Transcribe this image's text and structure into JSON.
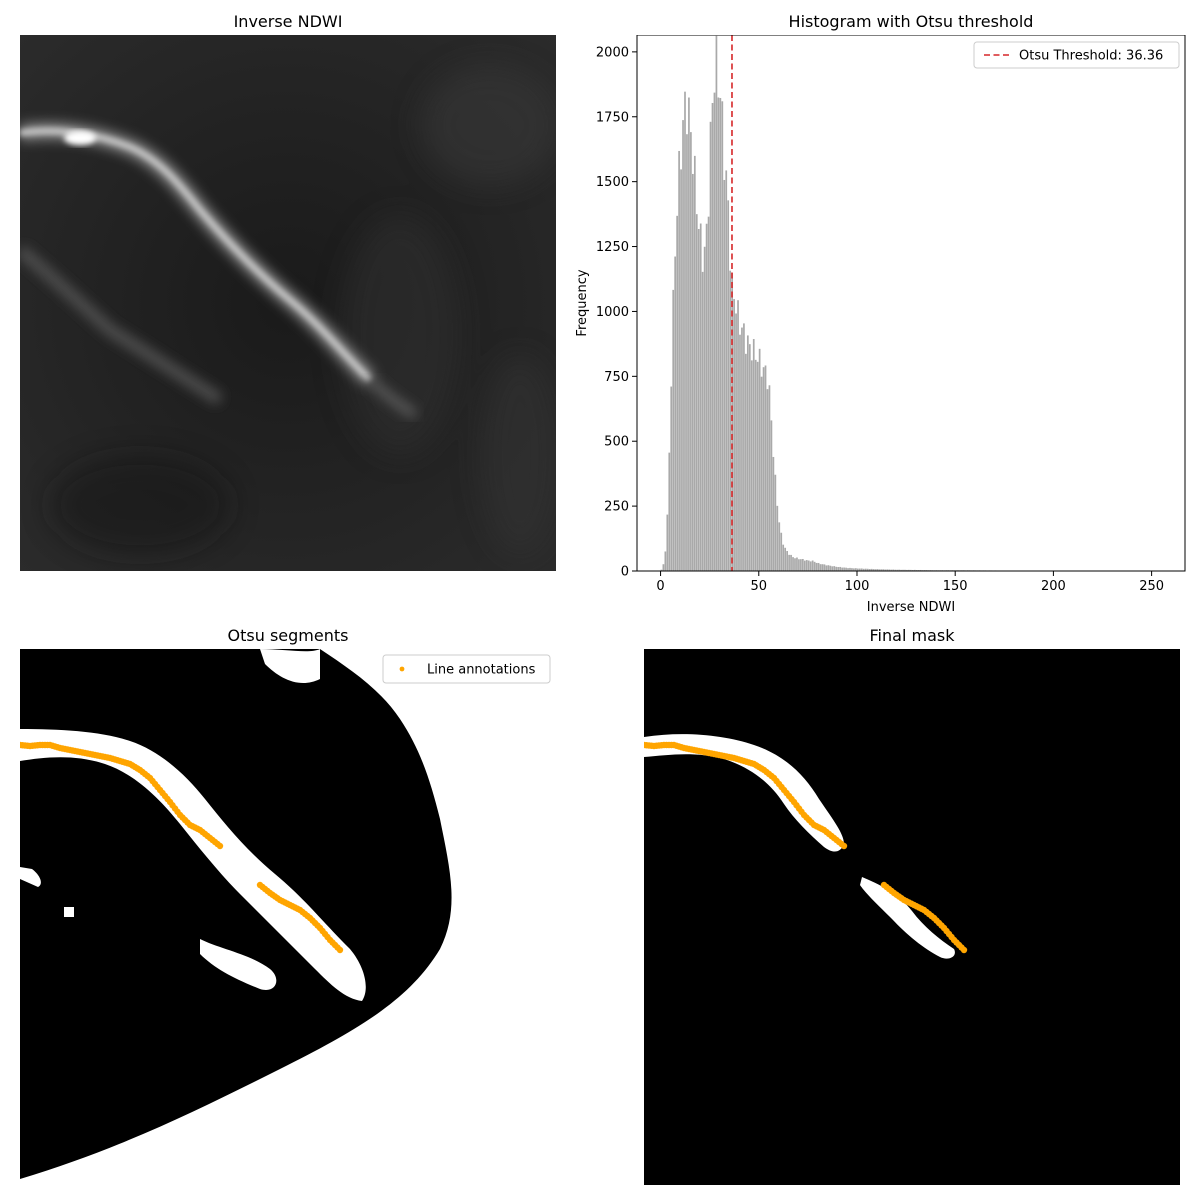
{
  "panels": {
    "ndwi": {
      "title": "Inverse NDWI"
    },
    "hist": {
      "title": "Histogram with Otsu threshold"
    },
    "otsu": {
      "title": "Otsu segments",
      "legend_label": "Line annotations"
    },
    "final": {
      "title": "Final mask"
    }
  },
  "colors": {
    "annotation": "#FFA500",
    "threshold": "#d62728",
    "bars": "#a9a9a9"
  },
  "chart_data": [
    {
      "type": "histogram",
      "title": "Histogram with Otsu threshold",
      "xlabel": "Inverse NDWI",
      "ylabel": "Frequency",
      "xlim": [
        -12,
        267
      ],
      "ylim": [
        0,
        2065
      ],
      "xticks": [
        0,
        50,
        100,
        150,
        200,
        250
      ],
      "yticks": [
        0,
        250,
        500,
        750,
        1000,
        1250,
        1500,
        1750,
        2000
      ],
      "threshold": {
        "value": 36.36,
        "label": "Otsu Threshold: 36.36"
      },
      "legend_position": "top-right",
      "grid": false,
      "profile": [
        [
          0,
          0
        ],
        [
          1,
          10
        ],
        [
          2,
          40
        ],
        [
          3,
          120
        ],
        [
          4,
          300
        ],
        [
          5,
          600
        ],
        [
          6,
          900
        ],
        [
          7,
          1150
        ],
        [
          8,
          1330
        ],
        [
          9,
          1480
        ],
        [
          10,
          1580
        ],
        [
          11,
          1680
        ],
        [
          12,
          1760
        ],
        [
          13,
          1800
        ],
        [
          14,
          1780
        ],
        [
          15,
          1720
        ],
        [
          16,
          1650
        ],
        [
          17,
          1560
        ],
        [
          18,
          1460
        ],
        [
          19,
          1380
        ],
        [
          20,
          1300
        ],
        [
          21,
          1240
        ],
        [
          22,
          1200
        ],
        [
          23,
          1250
        ],
        [
          24,
          1350
        ],
        [
          25,
          1550
        ],
        [
          26,
          1750
        ],
        [
          27,
          1880
        ],
        [
          28,
          1960
        ],
        [
          29,
          1930
        ],
        [
          30,
          1870
        ],
        [
          31,
          1800
        ],
        [
          32,
          1650
        ],
        [
          33,
          1550
        ],
        [
          34,
          1450
        ],
        [
          35,
          1350
        ],
        [
          36,
          1100
        ],
        [
          37,
          1080
        ],
        [
          38,
          1050
        ],
        [
          39,
          1000
        ],
        [
          40,
          970
        ],
        [
          41,
          940
        ],
        [
          42,
          930
        ],
        [
          43,
          900
        ],
        [
          44,
          880
        ],
        [
          45,
          870
        ],
        [
          46,
          860
        ],
        [
          47,
          850
        ],
        [
          48,
          840
        ],
        [
          49,
          830
        ],
        [
          50,
          820
        ],
        [
          51,
          800
        ],
        [
          52,
          780
        ],
        [
          53,
          770
        ],
        [
          54,
          760
        ],
        [
          55,
          730
        ],
        [
          56,
          640
        ],
        [
          57,
          520
        ],
        [
          58,
          400
        ],
        [
          59,
          300
        ],
        [
          60,
          220
        ],
        [
          61,
          160
        ],
        [
          62,
          120
        ],
        [
          63,
          95
        ],
        [
          64,
          80
        ],
        [
          65,
          70
        ],
        [
          66,
          62
        ],
        [
          67,
          56
        ],
        [
          68,
          52
        ],
        [
          70,
          48
        ],
        [
          72,
          45
        ],
        [
          75,
          40
        ],
        [
          78,
          38
        ],
        [
          80,
          30
        ],
        [
          85,
          22
        ],
        [
          90,
          16
        ],
        [
          95,
          12
        ],
        [
          100,
          10
        ],
        [
          110,
          7
        ],
        [
          120,
          5
        ],
        [
          130,
          4
        ],
        [
          140,
          3
        ],
        [
          150,
          3
        ],
        [
          170,
          2
        ],
        [
          190,
          1
        ],
        [
          210,
          1
        ],
        [
          230,
          1
        ],
        [
          255,
          0
        ]
      ]
    },
    {
      "type": "scatter",
      "title": "Otsu segments",
      "legend": [
        "Line annotations"
      ],
      "legend_position": "top-right",
      "series": [
        {
          "name": "Line annotations",
          "x": [
            0,
            10,
            20,
            30,
            40,
            50,
            60,
            70,
            80,
            90,
            100,
            110,
            120,
            130,
            140,
            150,
            160,
            170,
            180,
            190,
            200,
            240,
            250,
            260,
            270,
            280,
            290,
            300,
            310,
            320
          ],
          "y": [
            745,
            746,
            745,
            745,
            748,
            750,
            752,
            754,
            756,
            758,
            761,
            764,
            770,
            778,
            790,
            802,
            815,
            825,
            830,
            838,
            846,
            885,
            893,
            900,
            905,
            910,
            918,
            928,
            940,
            950
          ]
        }
      ]
    }
  ]
}
